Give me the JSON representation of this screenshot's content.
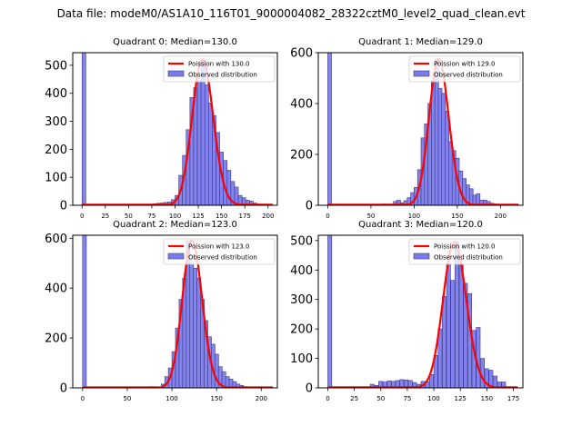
{
  "figure": {
    "suptitle": "Data file: modeM0/AS1A10_116T01_9000004082_28322cztM0_level2_quad_clean.evt",
    "colors": {
      "bar_fill": "#7b7bf0",
      "bar_edge": "#3a3a7a",
      "poisson_line": "#ff0000",
      "axis": "#000000"
    }
  },
  "chart_data": [
    {
      "type": "bar",
      "title": "Quadrant 0: Median=130.0",
      "legend": [
        "Poission with 130.0",
        "Observed distribution"
      ],
      "legend_position": "top-right",
      "poisson_mean": 130.0,
      "poisson_scale": 520,
      "xlim": [
        -10,
        210
      ],
      "ylim": [
        0,
        545
      ],
      "xticks": [
        0,
        25,
        50,
        75,
        100,
        125,
        150,
        175,
        200
      ],
      "yticks": [
        0,
        100,
        200,
        300,
        400,
        500
      ],
      "bin_width": 4,
      "bins": [
        0,
        60,
        64,
        72,
        76,
        80,
        84,
        88,
        92,
        96,
        100,
        104,
        108,
        112,
        116,
        120,
        124,
        128,
        132,
        136,
        140,
        144,
        148,
        152,
        156,
        160,
        164,
        168,
        172,
        176,
        180,
        184,
        188,
        192,
        196
      ],
      "values": [
        560,
        2,
        3,
        4,
        5,
        7,
        8,
        10,
        12,
        20,
        35,
        107,
        178,
        270,
        385,
        420,
        445,
        520,
        430,
        365,
        320,
        260,
        190,
        160,
        125,
        85,
        65,
        35,
        27,
        18,
        15,
        8,
        4,
        2,
        1
      ]
    },
    {
      "type": "bar",
      "title": "Quadrant 1: Median=129.0",
      "legend": [
        "Poission with 129.0",
        "Observed distribution"
      ],
      "legend_position": "top-right",
      "poisson_mean": 129.0,
      "poisson_scale": 575,
      "xlim": [
        -11,
        226
      ],
      "ylim": [
        0,
        600
      ],
      "xticks": [
        0,
        50,
        100,
        150,
        200
      ],
      "yticks": [
        0,
        200,
        400,
        600
      ],
      "bin_width": 4.3,
      "bins": [
        0,
        64,
        72,
        76,
        80,
        84,
        88,
        92,
        96,
        100,
        104,
        108,
        112,
        116,
        120,
        124,
        128,
        132,
        136,
        140,
        144,
        148,
        152,
        156,
        160,
        164,
        168,
        172,
        176,
        180,
        184,
        188,
        192,
        196,
        200,
        204,
        208
      ],
      "values": [
        620,
        5,
        3,
        15,
        20,
        10,
        18,
        30,
        50,
        70,
        140,
        265,
        320,
        400,
        490,
        575,
        460,
        440,
        370,
        250,
        215,
        185,
        135,
        105,
        80,
        65,
        40,
        45,
        20,
        20,
        15,
        8,
        5,
        4,
        3,
        2,
        1
      ]
    },
    {
      "type": "bar",
      "title": "Quadrant 2: Median=123.0",
      "legend": [
        "Poission with 123.0",
        "Observed distribution"
      ],
      "legend_position": "top-right",
      "poisson_mean": 123.0,
      "poisson_scale": 590,
      "xlim": [
        -11,
        218
      ],
      "ylim": [
        0,
        612
      ],
      "xticks": [
        0,
        50,
        100,
        150,
        200
      ],
      "yticks": [
        0,
        200,
        400,
        600
      ],
      "bin_width": 4.2,
      "bins": [
        0,
        60,
        76,
        88,
        92,
        96,
        100,
        104,
        108,
        112,
        116,
        120,
        124,
        128,
        132,
        136,
        140,
        144,
        148,
        152,
        156,
        160,
        164,
        168,
        172,
        176,
        180,
        184,
        188,
        192
      ],
      "values": [
        640,
        2,
        5,
        15,
        45,
        80,
        145,
        240,
        355,
        440,
        590,
        500,
        480,
        440,
        355,
        270,
        205,
        175,
        135,
        85,
        65,
        45,
        35,
        25,
        15,
        10,
        5,
        3,
        2,
        1
      ]
    },
    {
      "type": "bar",
      "title": "Quadrant 3: Median=120.0",
      "legend": [
        "Poission with 120.0",
        "Observed distribution"
      ],
      "legend_position": "top-right",
      "poisson_mean": 120.0,
      "poisson_scale": 495,
      "xlim": [
        -9,
        184
      ],
      "ylim": [
        0,
        518
      ],
      "xticks": [
        0,
        25,
        50,
        75,
        100,
        125,
        150,
        175
      ],
      "yticks": [
        0,
        100,
        200,
        300,
        400,
        500
      ],
      "bin_width": 3.7,
      "bins": [
        0,
        40,
        44,
        48,
        52,
        56,
        60,
        64,
        68,
        72,
        76,
        80,
        84,
        88,
        92,
        96,
        100,
        104,
        108,
        112,
        116,
        120,
        124,
        128,
        132,
        136,
        140,
        144,
        148,
        152,
        156,
        160,
        164
      ],
      "values": [
        560,
        12,
        8,
        22,
        20,
        24,
        22,
        25,
        28,
        27,
        25,
        18,
        12,
        22,
        20,
        45,
        110,
        200,
        310,
        425,
        365,
        495,
        420,
        355,
        320,
        195,
        205,
        100,
        65,
        60,
        40,
        20,
        20
      ]
    }
  ]
}
